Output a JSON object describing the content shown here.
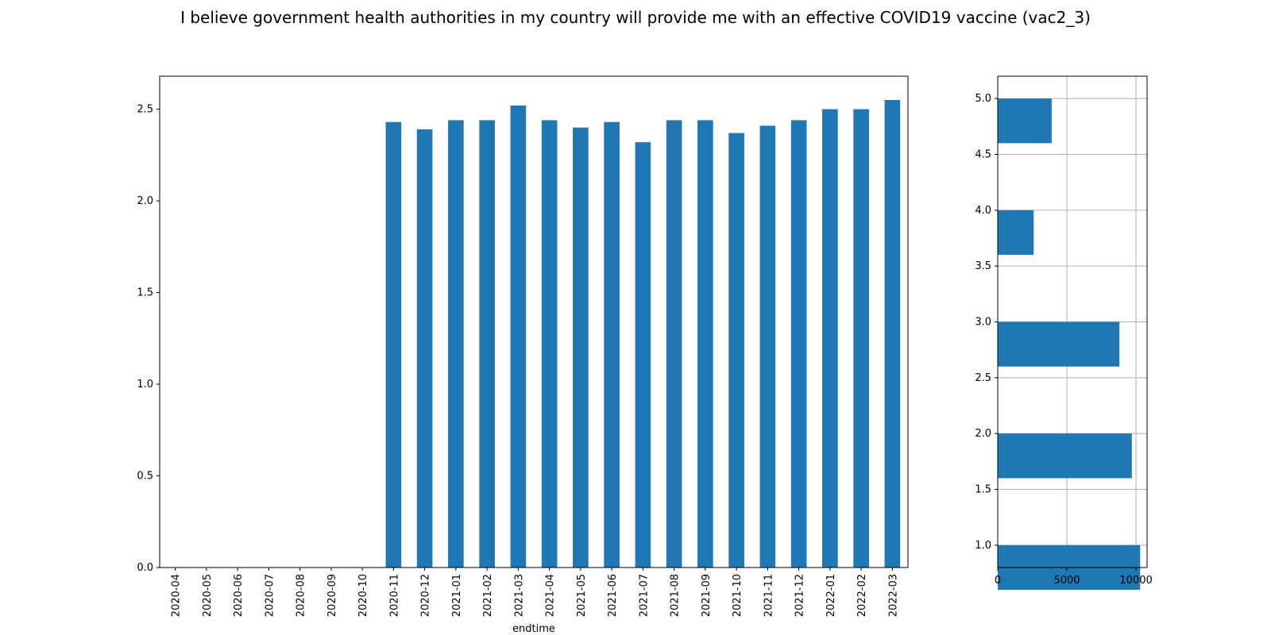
{
  "title": "I believe government health authorities in my country will provide me with an effective COVID19 vaccine (vac2_3)",
  "chart_data": [
    {
      "type": "bar",
      "orientation": "vertical",
      "xlabel": "endtime",
      "ylabel": "",
      "ylim": [
        0,
        2.68
      ],
      "yticks": [
        "0.0",
        "0.5",
        "1.0",
        "1.5",
        "2.0",
        "2.5"
      ],
      "grid": false,
      "color": "#1f77b4",
      "categories": [
        "2020-04",
        "2020-05",
        "2020-06",
        "2020-07",
        "2020-08",
        "2020-09",
        "2020-10",
        "2020-11",
        "2020-12",
        "2021-01",
        "2021-02",
        "2021-03",
        "2021-04",
        "2021-05",
        "2021-06",
        "2021-07",
        "2021-08",
        "2021-09",
        "2021-10",
        "2021-11",
        "2021-12",
        "2022-01",
        "2022-02",
        "2022-03"
      ],
      "values": [
        null,
        null,
        null,
        null,
        null,
        null,
        null,
        2.43,
        2.39,
        2.44,
        2.44,
        2.52,
        2.44,
        2.4,
        2.43,
        2.32,
        2.44,
        2.44,
        2.37,
        2.41,
        2.44,
        2.5,
        2.5,
        2.55
      ]
    },
    {
      "type": "bar",
      "orientation": "horizontal",
      "xlabel": "",
      "ylabel": "",
      "xlim": [
        0,
        10800
      ],
      "ylim": [
        0.8,
        5.2
      ],
      "xticks": [
        "0",
        "5000",
        "10000"
      ],
      "yticks": [
        "1.0",
        "1.5",
        "2.0",
        "2.5",
        "3.0",
        "3.5",
        "4.0",
        "4.5",
        "5.0"
      ],
      "grid": true,
      "color": "#1f77b4",
      "categories": [
        1.0,
        2.0,
        3.0,
        4.0,
        5.0
      ],
      "values": [
        10300,
        9700,
        8800,
        2600,
        3900
      ]
    }
  ]
}
